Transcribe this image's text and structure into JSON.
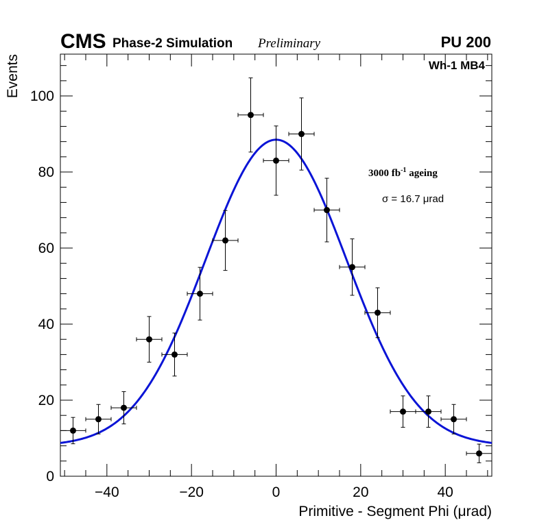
{
  "header": {
    "experiment": "CMS",
    "subtitle": "Phase-2 Simulation",
    "status": "Preliminary",
    "pileup": "PU 200"
  },
  "annotations": {
    "region": "Wh-1 MB4",
    "lumi_value": "3000 fb",
    "lumi_exp": "-1",
    "lumi_suffix": " ageing",
    "sigma_text": "σ = 16.7 μrad"
  },
  "chart_data": {
    "type": "scatter",
    "title": "",
    "xlabel": "Primitive - Segment Phi (μrad)",
    "ylabel": "Events",
    "xlim": [
      -51,
      51
    ],
    "ylim": [
      0,
      111
    ],
    "xticks": [
      -40,
      -20,
      0,
      20,
      40
    ],
    "xtick_labels": [
      "−40",
      "−20",
      "0",
      "20",
      "40"
    ],
    "yticks": [
      0,
      20,
      40,
      60,
      80,
      100
    ],
    "ytick_labels": [
      "0",
      "20",
      "40",
      "60",
      "80",
      "100"
    ],
    "bin_half_width": 3,
    "series": [
      {
        "name": "Simulation",
        "x": [
          -48,
          -42,
          -36,
          -30,
          -24,
          -18,
          -12,
          -6,
          0,
          6,
          12,
          18,
          24,
          30,
          36,
          42,
          48
        ],
        "y": [
          12,
          15,
          18,
          36,
          32,
          48,
          62,
          95,
          83,
          90,
          70,
          55,
          43,
          17,
          17,
          15,
          6
        ],
        "color": "#000000"
      }
    ],
    "fit": {
      "name": "Gaussian fit",
      "function": "gaussian+constant",
      "amplitude": 80.5,
      "mean": 0,
      "sigma": 16.7,
      "offset": 8,
      "color": "#0a14d6"
    }
  }
}
